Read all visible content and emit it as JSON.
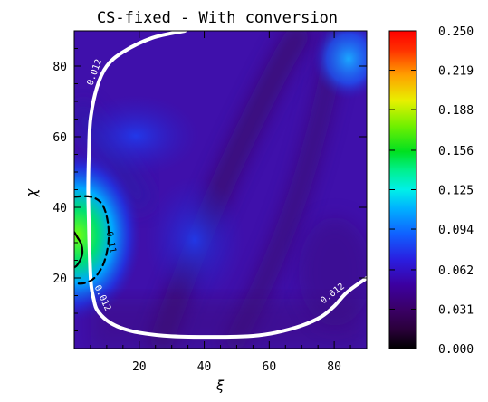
{
  "chart_data": {
    "type": "heatmap",
    "title": "CS-fixed - With conversion",
    "xlabel": "ξ",
    "ylabel": "χ",
    "xlim": [
      0,
      90
    ],
    "ylim": [
      0,
      90
    ],
    "x_ticks": [
      "20",
      "40",
      "60",
      "80"
    ],
    "y_ticks": [
      "20",
      "40",
      "60",
      "80"
    ],
    "colorbar": {
      "range": [
        0.0,
        0.25
      ],
      "tick_labels": [
        "0.250",
        "0.219",
        "0.188",
        "0.156",
        "0.125",
        "0.094",
        "0.062",
        "0.031",
        "0.000"
      ],
      "colormap": "rainbow"
    },
    "contours": [
      {
        "level_label": "0.012",
        "style": "solid",
        "color": "#ffffff",
        "points": [
          [
            34,
            90
          ],
          [
            24,
            88
          ],
          [
            15,
            84
          ],
          [
            10,
            80
          ],
          [
            7,
            74
          ],
          [
            5,
            65
          ],
          [
            4.5,
            55
          ],
          [
            4.3,
            45
          ],
          [
            4.5,
            35
          ],
          [
            4.8,
            25
          ],
          [
            5.2,
            18
          ],
          [
            6,
            14
          ],
          [
            7,
            11
          ],
          [
            10,
            8
          ],
          [
            14,
            6
          ],
          [
            20,
            4.5
          ],
          [
            30,
            3.5
          ],
          [
            45,
            3.3
          ],
          [
            55,
            3.6
          ],
          [
            62,
            4.5
          ],
          [
            70,
            6.5
          ],
          [
            76,
            9
          ],
          [
            80,
            12
          ],
          [
            84,
            16
          ],
          [
            90,
            20
          ]
        ],
        "labels_at": [
          [
            7,
            78
          ],
          [
            8,
            14
          ],
          [
            80,
            15
          ]
        ]
      },
      {
        "level_label": "0.11",
        "style": "dashed",
        "color": "#000000",
        "points": [
          [
            0,
            43
          ],
          [
            5,
            43
          ],
          [
            8.5,
            41
          ],
          [
            10.3,
            36
          ],
          [
            10.5,
            30
          ],
          [
            9,
            24
          ],
          [
            6.2,
            20
          ],
          [
            3,
            18.5
          ],
          [
            0,
            18.5
          ]
        ],
        "labels_at": [
          [
            10.5,
            30
          ]
        ]
      },
      {
        "level_label": "",
        "style": "solid",
        "color": "#000000",
        "points": [
          [
            0,
            33
          ],
          [
            1,
            31.5
          ],
          [
            2.2,
            29.5
          ],
          [
            2.5,
            27
          ],
          [
            1.8,
            25
          ],
          [
            0.8,
            23.5
          ],
          [
            0,
            23
          ]
        ],
        "labels_at": []
      }
    ]
  }
}
